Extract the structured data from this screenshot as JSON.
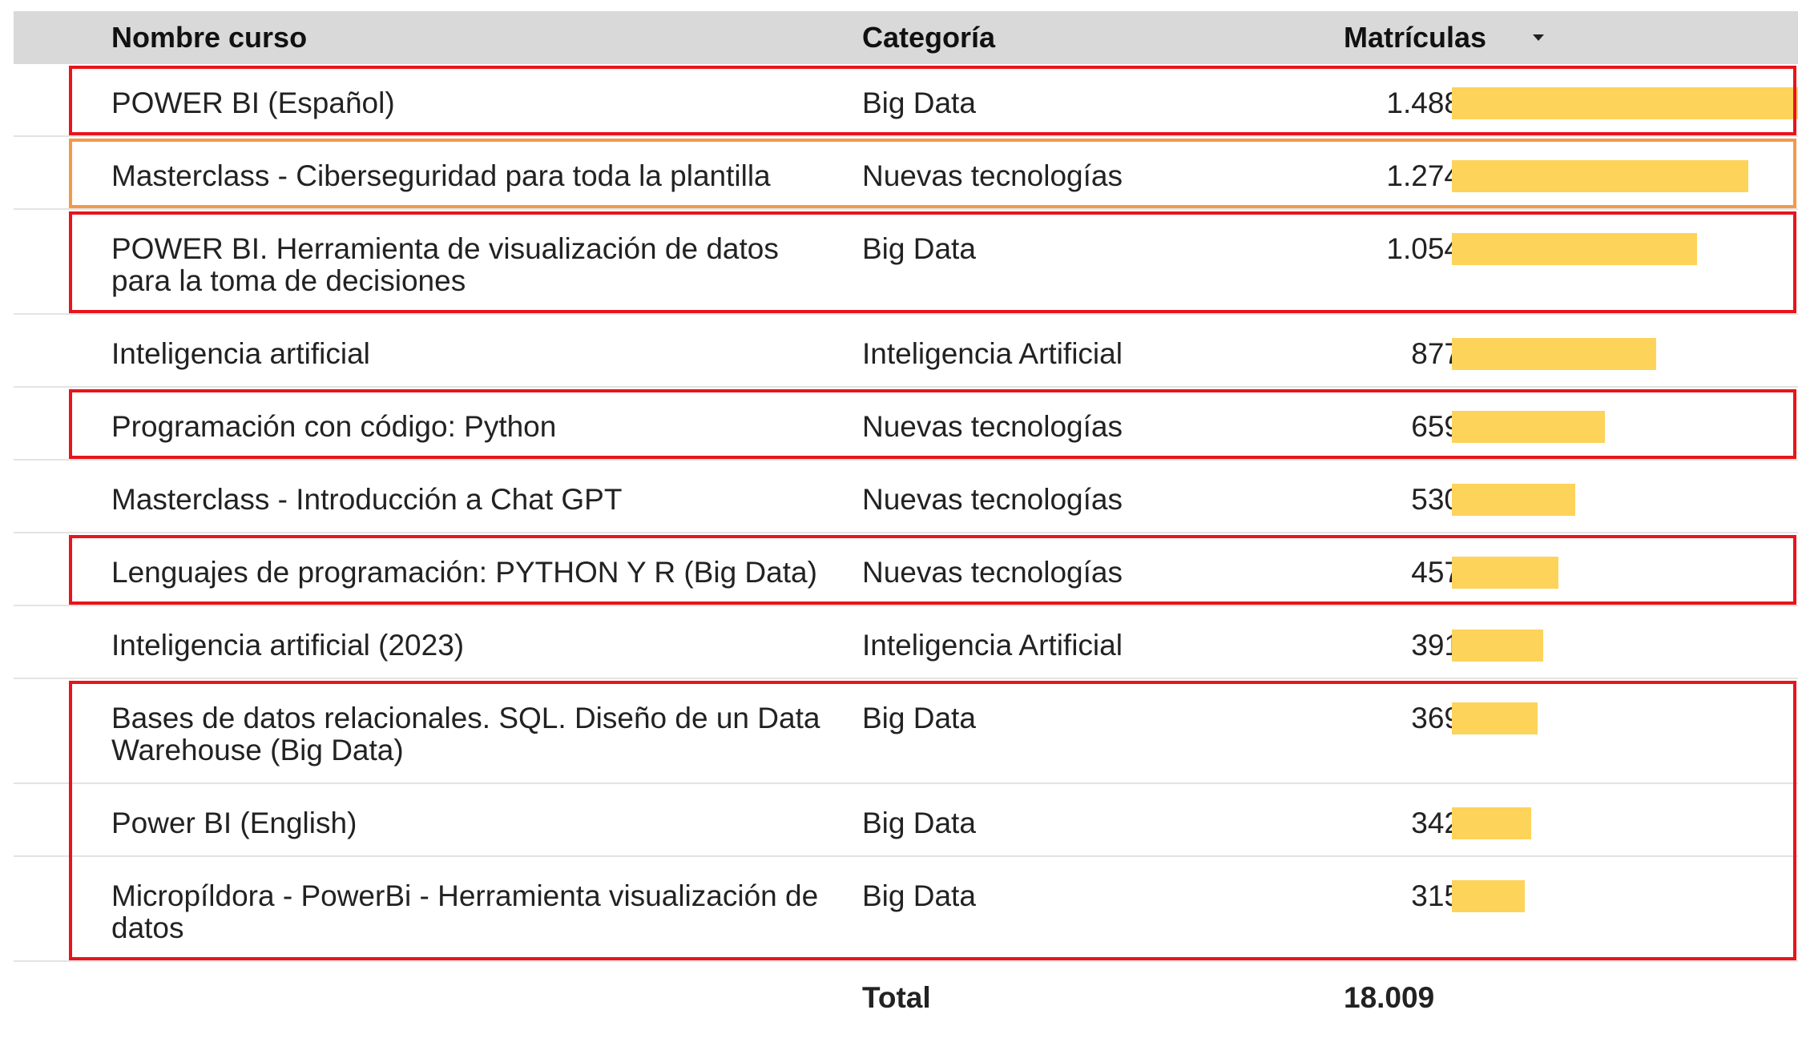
{
  "table": {
    "columns": [
      "Nombre curso",
      "Categoría",
      "Matrículas"
    ],
    "bar_color": "#fdd35a",
    "rows": [
      {
        "name": "POWER BI (Español)",
        "category": "Big Data",
        "value": 1488,
        "value_label": "1.488"
      },
      {
        "name": "Masterclass - Ciberseguridad para toda la plantilla",
        "category": "Nuevas tecnologías",
        "value": 1274,
        "value_label": "1.274"
      },
      {
        "name": "POWER BI. Herramienta de visualización de datos para la toma de decisiones",
        "category": "Big Data",
        "value": 1054,
        "value_label": "1.054"
      },
      {
        "name": "Inteligencia artificial",
        "category": "Inteligencia Artificial",
        "value": 877,
        "value_label": "877"
      },
      {
        "name": "Programación con código: Python",
        "category": "Nuevas tecnologías",
        "value": 659,
        "value_label": "659"
      },
      {
        "name": "Masterclass - Introducción a Chat GPT",
        "category": "Nuevas tecnologías",
        "value": 530,
        "value_label": "530"
      },
      {
        "name": "Lenguajes de programación: PYTHON Y R (Big Data)",
        "category": "Nuevas tecnologías",
        "value": 457,
        "value_label": "457"
      },
      {
        "name": "Inteligencia artificial (2023)",
        "category": "Inteligencia Artificial",
        "value": 391,
        "value_label": "391"
      },
      {
        "name": "Bases de datos relacionales. SQL. Diseño de un Data Warehouse (Big Data)",
        "category": "Big Data",
        "value": 369,
        "value_label": "369"
      },
      {
        "name": "Power BI (English)",
        "category": "Big Data",
        "value": 342,
        "value_label": "342"
      },
      {
        "name": "Micropíldora - PowerBi - Herramienta visualización de datos",
        "category": "Big Data",
        "value": 315,
        "value_label": "315"
      }
    ],
    "total_label": "Total",
    "total": "18.009"
  }
}
